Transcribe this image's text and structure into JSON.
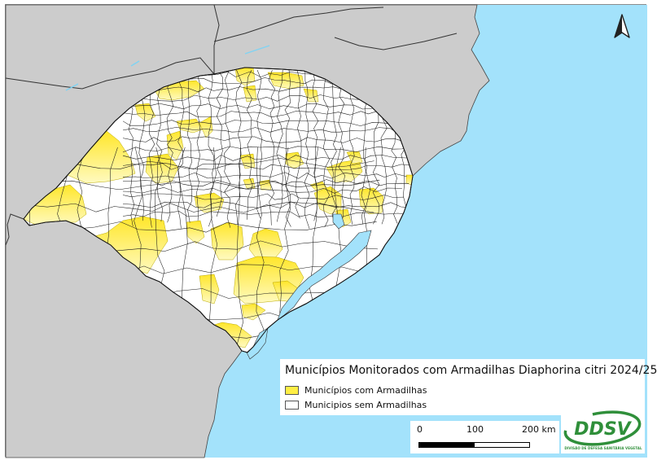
{
  "legend": {
    "title": "Municípios Monitorados com Armadilhas Diaphorina citri 2024/25",
    "items": [
      {
        "label": "Municípios com Armadilhas",
        "fill": "#ffee44"
      },
      {
        "label": "Municipios sem Armadilhas",
        "fill": "#ffffff"
      }
    ]
  },
  "scalebar": {
    "labels": [
      "0",
      "100",
      "200 km"
    ]
  },
  "logo": {
    "text": "DDSV",
    "subtitle": "DIVISÃO DE DEFESA SANITÁRIA VEGETAL"
  },
  "north_arrow": {
    "icon": "north-arrow-icon"
  },
  "colors": {
    "sea": "#a3e2fb",
    "land_outside": "#cccccc",
    "state_fill": "#ffffff",
    "with_traps": "#ffee44",
    "borders": "#222222"
  }
}
